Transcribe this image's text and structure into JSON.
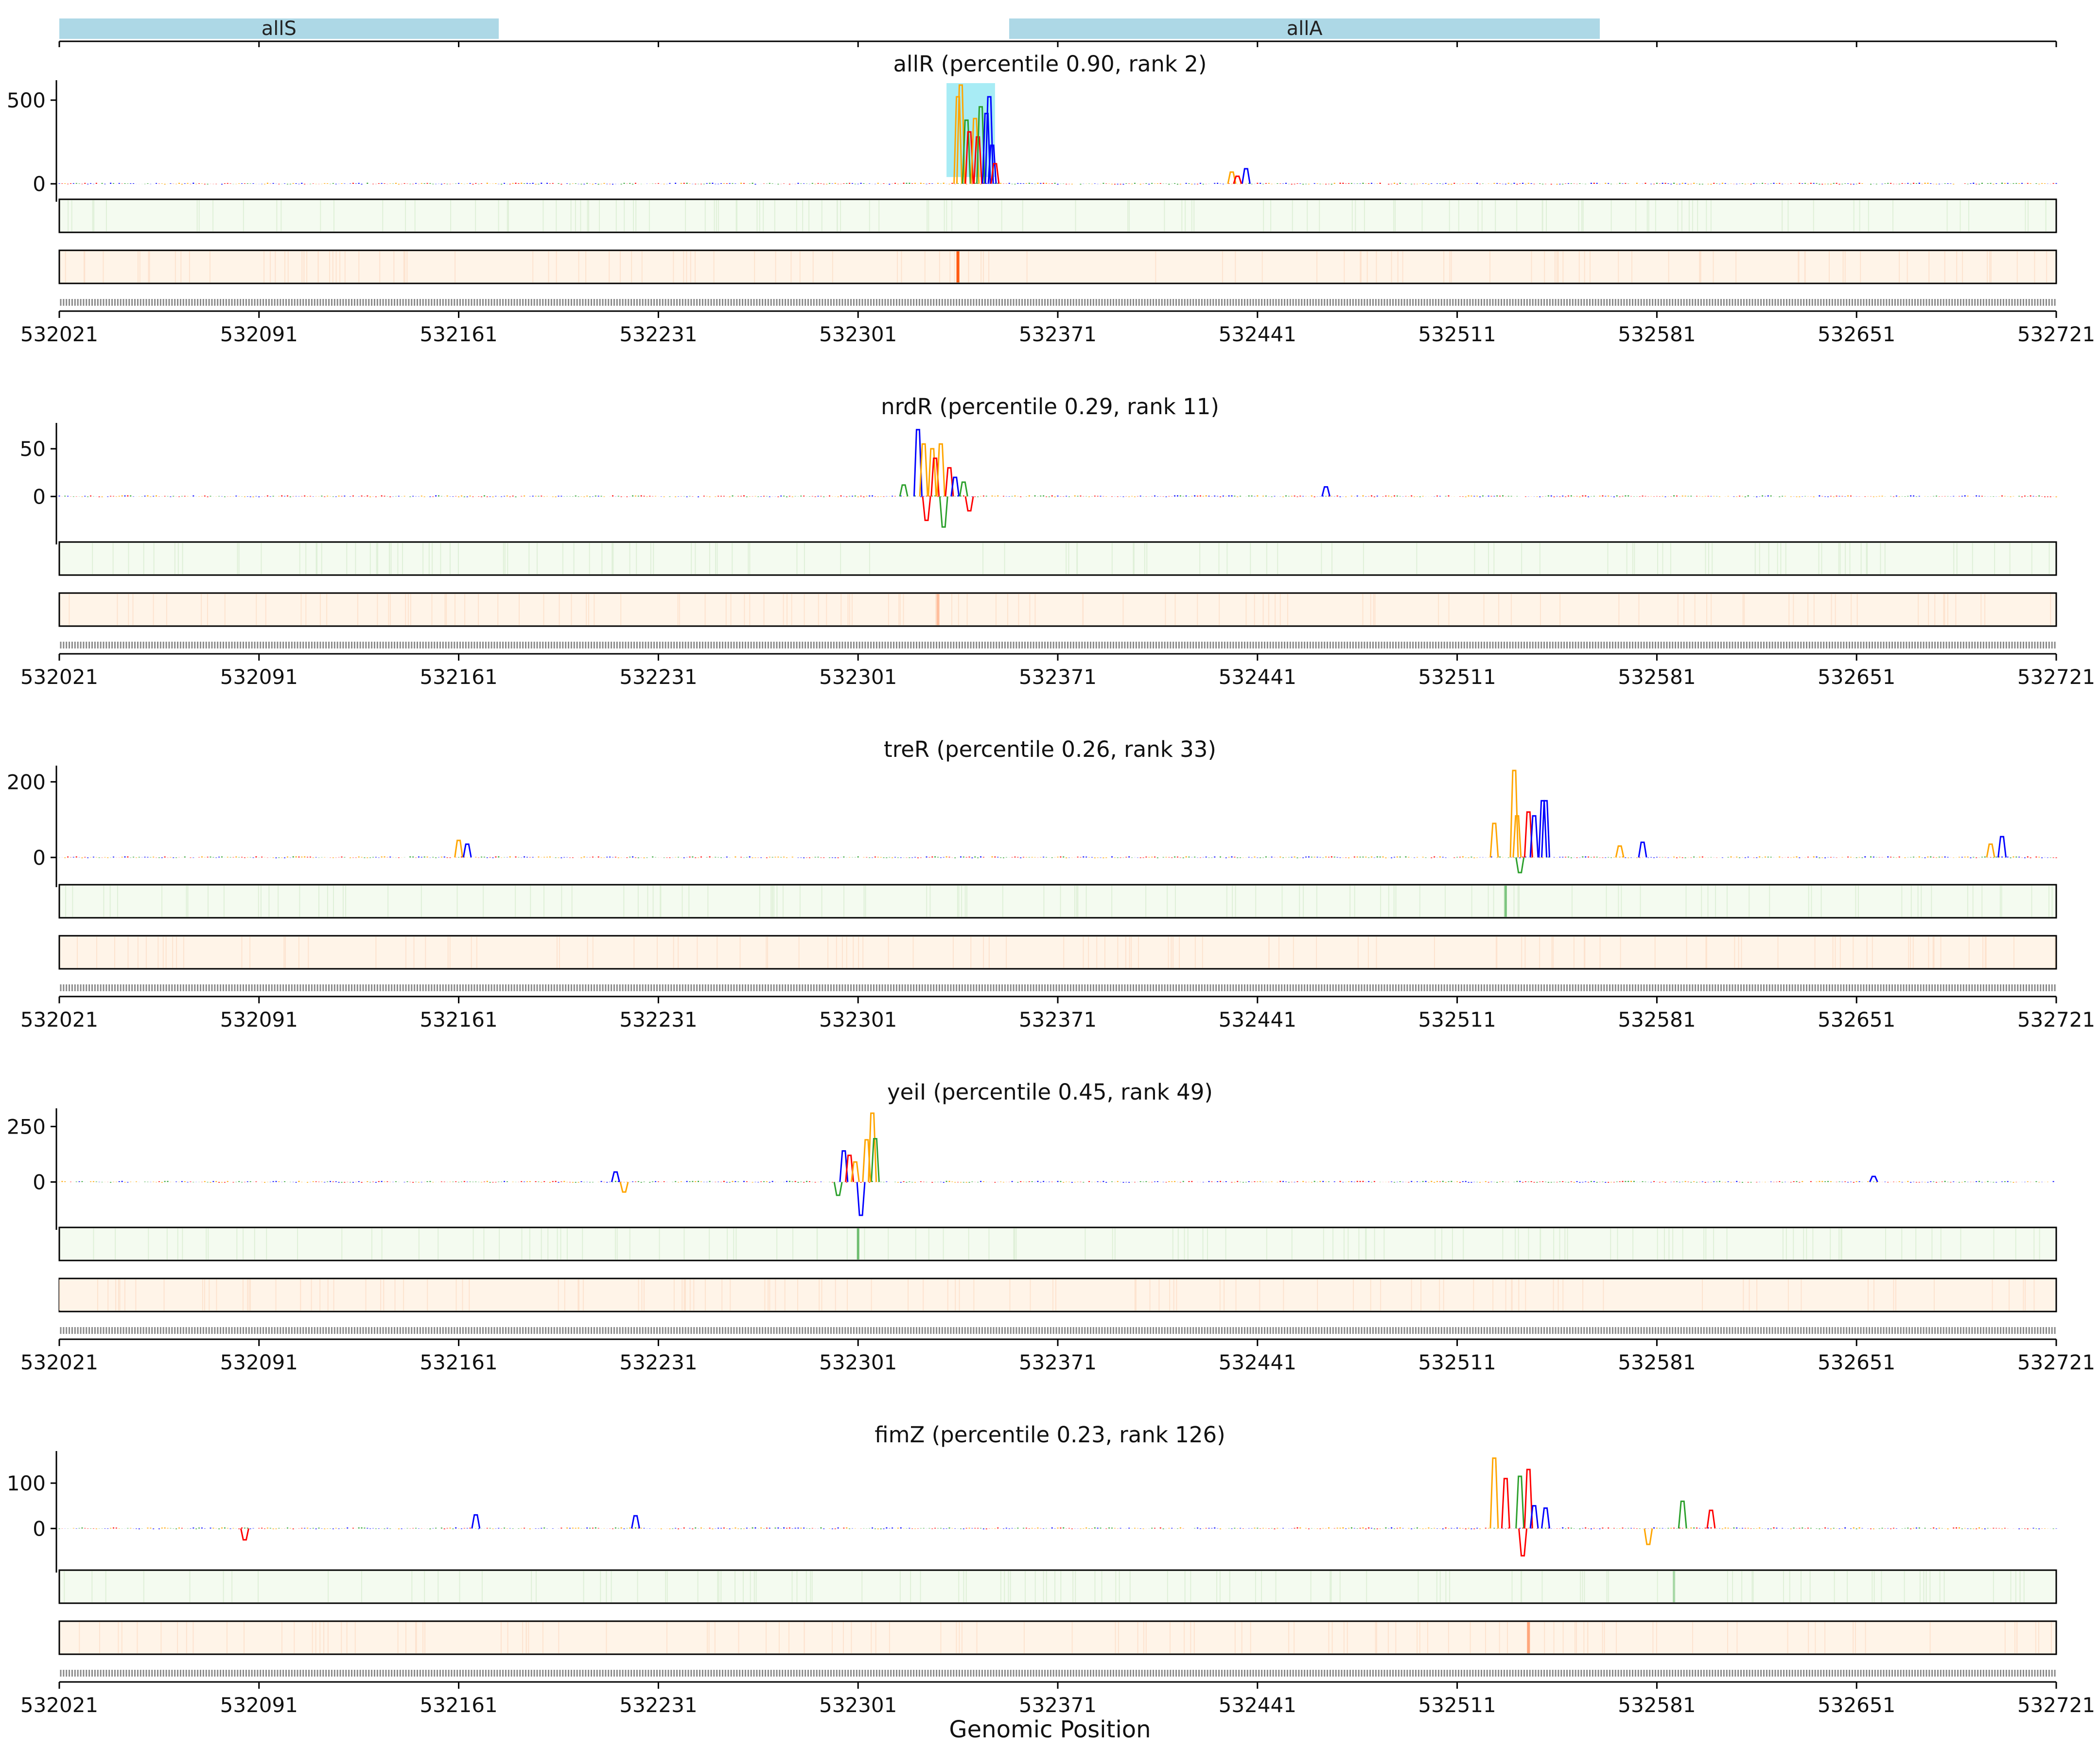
{
  "figure": {
    "xlabel": "Genomic Position"
  },
  "genes": [
    {
      "name": "allS",
      "start": 532021,
      "end": 532175
    },
    {
      "name": "allA",
      "start": 532354,
      "end": 532561
    }
  ],
  "colors": {
    "A": "#2ca02c",
    "C": "#0000ff",
    "G": "#ffa500",
    "T": "#ff0000",
    "gene_bar": "#add8e6",
    "highlight": "#a8ecf5",
    "track1_bg": "#f4fbf0",
    "track2_bg": "#fff4e8",
    "track1_peak": "#4caf50",
    "track2_peak": "#ff5a10"
  },
  "chart_data": [
    {
      "type": "area",
      "title": "allR (percentile 0.90, rank 2)",
      "x_ticks": [
        532021,
        532091,
        532161,
        532231,
        532301,
        532371,
        532441,
        532511,
        532581,
        532651,
        532721
      ],
      "xlim": [
        532021,
        532721
      ],
      "y_ticks": [
        0,
        500
      ],
      "ylim": [
        -20,
        590
      ],
      "highlight": [
        532332,
        532349
      ],
      "peaks": [
        {
          "x": 532336,
          "y": 520,
          "base": "G"
        },
        {
          "x": 532337,
          "y": 590,
          "base": "G"
        },
        {
          "x": 532339,
          "y": 380,
          "base": "A"
        },
        {
          "x": 532340,
          "y": 310,
          "base": "T"
        },
        {
          "x": 532342,
          "y": 390,
          "base": "G"
        },
        {
          "x": 532343,
          "y": 280,
          "base": "T"
        },
        {
          "x": 532344,
          "y": 460,
          "base": "A"
        },
        {
          "x": 532346,
          "y": 420,
          "base": "C"
        },
        {
          "x": 532347,
          "y": 520,
          "base": "C"
        },
        {
          "x": 532348,
          "y": 230,
          "base": "C"
        },
        {
          "x": 532349,
          "y": 120,
          "base": "T"
        },
        {
          "x": 532432,
          "y": 70,
          "base": "G"
        },
        {
          "x": 532437,
          "y": 90,
          "base": "C"
        },
        {
          "x": 532434,
          "y": 45,
          "base": "T"
        }
      ],
      "track1_peaks": [],
      "track2_peaks": [
        {
          "x": 532336,
          "strength": 1.0
        }
      ]
    },
    {
      "type": "area",
      "title": "nrdR (percentile 0.29, rank 11)",
      "x_ticks": [
        532021,
        532091,
        532161,
        532231,
        532301,
        532371,
        532441,
        532511,
        532581,
        532651,
        532721
      ],
      "xlim": [
        532021,
        532721
      ],
      "y_ticks": [
        0,
        50
      ],
      "ylim": [
        -35,
        72
      ],
      "highlight": null,
      "peaks": [
        {
          "x": 532322,
          "y": 70,
          "base": "C"
        },
        {
          "x": 532324,
          "y": 55,
          "base": "G"
        },
        {
          "x": 532325,
          "y": -25,
          "base": "T"
        },
        {
          "x": 532327,
          "y": 50,
          "base": "G"
        },
        {
          "x": 532328,
          "y": 40,
          "base": "T"
        },
        {
          "x": 532330,
          "y": 55,
          "base": "G"
        },
        {
          "x": 532331,
          "y": -32,
          "base": "A"
        },
        {
          "x": 532333,
          "y": 30,
          "base": "T"
        },
        {
          "x": 532335,
          "y": 20,
          "base": "C"
        },
        {
          "x": 532338,
          "y": 15,
          "base": "A"
        },
        {
          "x": 532340,
          "y": -15,
          "base": "T"
        },
        {
          "x": 532317,
          "y": 12,
          "base": "A"
        },
        {
          "x": 532465,
          "y": 10,
          "base": "C"
        }
      ],
      "track1_peaks": [],
      "track2_peaks": [
        {
          "x": 532329,
          "strength": 0.35
        }
      ]
    },
    {
      "type": "area",
      "title": "treR (percentile 0.26, rank 33)",
      "x_ticks": [
        532021,
        532091,
        532161,
        532231,
        532301,
        532371,
        532441,
        532511,
        532581,
        532651,
        532721
      ],
      "xlim": [
        532021,
        532721
      ],
      "y_ticks": [
        0,
        200
      ],
      "ylim": [
        -40,
        230
      ],
      "highlight": null,
      "peaks": [
        {
          "x": 532161,
          "y": 45,
          "base": "G"
        },
        {
          "x": 532164,
          "y": 35,
          "base": "C"
        },
        {
          "x": 532531,
          "y": 230,
          "base": "G"
        },
        {
          "x": 532532,
          "y": 110,
          "base": "G"
        },
        {
          "x": 532533,
          "y": -40,
          "base": "A"
        },
        {
          "x": 532536,
          "y": 120,
          "base": "T"
        },
        {
          "x": 532538,
          "y": 110,
          "base": "C"
        },
        {
          "x": 532541,
          "y": 150,
          "base": "C"
        },
        {
          "x": 532542,
          "y": 150,
          "base": "C"
        },
        {
          "x": 532524,
          "y": 90,
          "base": "G"
        },
        {
          "x": 532576,
          "y": 40,
          "base": "C"
        },
        {
          "x": 532568,
          "y": 30,
          "base": "G"
        },
        {
          "x": 532702,
          "y": 55,
          "base": "C"
        },
        {
          "x": 532698,
          "y": 35,
          "base": "G"
        }
      ],
      "track1_peaks": [
        {
          "x": 532528,
          "strength": 0.7
        }
      ],
      "track2_peaks": []
    },
    {
      "type": "area",
      "title": "yeiI (percentile 0.45, rank 49)",
      "x_ticks": [
        532021,
        532091,
        532161,
        532231,
        532301,
        532371,
        532441,
        532511,
        532581,
        532651,
        532721
      ],
      "xlim": [
        532021,
        532721
      ],
      "y_ticks": [
        0,
        250
      ],
      "ylim": [
        -150,
        310
      ],
      "highlight": null,
      "peaks": [
        {
          "x": 532306,
          "y": 310,
          "base": "G"
        },
        {
          "x": 532307,
          "y": 195,
          "base": "A"
        },
        {
          "x": 532304,
          "y": 190,
          "base": "G"
        },
        {
          "x": 532302,
          "y": -150,
          "base": "C"
        },
        {
          "x": 532296,
          "y": 140,
          "base": "C"
        },
        {
          "x": 532298,
          "y": 120,
          "base": "T"
        },
        {
          "x": 532300,
          "y": 90,
          "base": "G"
        },
        {
          "x": 532294,
          "y": -60,
          "base": "A"
        },
        {
          "x": 532216,
          "y": 45,
          "base": "C"
        },
        {
          "x": 532219,
          "y": -45,
          "base": "G"
        },
        {
          "x": 532657,
          "y": 25,
          "base": "C"
        }
      ],
      "track1_peaks": [
        {
          "x": 532301,
          "strength": 0.8
        }
      ],
      "track2_peaks": []
    },
    {
      "type": "area",
      "title": "fimZ (percentile 0.23, rank 126)",
      "x_ticks": [
        532021,
        532091,
        532161,
        532231,
        532301,
        532371,
        532441,
        532511,
        532581,
        532651,
        532721
      ],
      "xlim": [
        532021,
        532721
      ],
      "y_ticks": [
        0,
        100
      ],
      "ylim": [
        -65,
        160
      ],
      "highlight": null,
      "peaks": [
        {
          "x": 532524,
          "y": 155,
          "base": "G"
        },
        {
          "x": 532528,
          "y": 110,
          "base": "T"
        },
        {
          "x": 532533,
          "y": 115,
          "base": "A"
        },
        {
          "x": 532536,
          "y": 130,
          "base": "T"
        },
        {
          "x": 532534,
          "y": -60,
          "base": "T"
        },
        {
          "x": 532538,
          "y": 50,
          "base": "C"
        },
        {
          "x": 532542,
          "y": 45,
          "base": "C"
        },
        {
          "x": 532590,
          "y": 60,
          "base": "A"
        },
        {
          "x": 532600,
          "y": 40,
          "base": "T"
        },
        {
          "x": 532578,
          "y": -35,
          "base": "G"
        },
        {
          "x": 532167,
          "y": 30,
          "base": "C"
        },
        {
          "x": 532223,
          "y": 28,
          "base": "C"
        },
        {
          "x": 532086,
          "y": -25,
          "base": "T"
        }
      ],
      "track1_peaks": [
        {
          "x": 532587,
          "strength": 0.4
        }
      ],
      "track2_peaks": [
        {
          "x": 532536,
          "strength": 0.5
        }
      ]
    }
  ]
}
